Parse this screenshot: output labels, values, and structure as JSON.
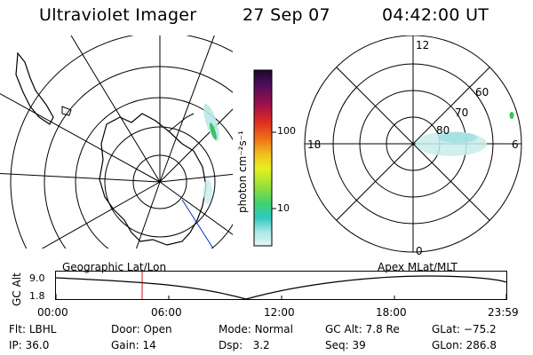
{
  "header": {
    "title": "Ultraviolet Imager",
    "date": "27 Sep 07",
    "time": "04:42:00 UT"
  },
  "geo_map": {
    "label": "Geographic Lat/Lon"
  },
  "colorbar": {
    "unit": "photon cm⁻²s⁻¹",
    "ticks": [
      "100",
      "10"
    ],
    "colors": [
      "#2a0a4a",
      "#5a0e5a",
      "#a0104a",
      "#e03020",
      "#f07818",
      "#f0c020",
      "#e8f020",
      "#a8e838",
      "#50d850",
      "#30c8c0",
      "#a8e8e8",
      "#e8f4f4"
    ]
  },
  "polar_map": {
    "label": "Apex MLat/MLT",
    "mlt_labels": {
      "top": "12",
      "left": "18",
      "right": "6",
      "bottom": "0"
    },
    "lat_labels": [
      "60",
      "70",
      "80"
    ]
  },
  "alt_plot": {
    "ylabel": "GC Alt",
    "yticks": [
      "9.0",
      "1.8"
    ],
    "xticks": [
      "00:00",
      "06:00",
      "12:00",
      "18:00",
      "23:59"
    ],
    "marker_color": "#d01010"
  },
  "status": {
    "row1": [
      {
        "key": "Flt:",
        "value": "LBHL"
      },
      {
        "key": "Door:",
        "value": "Open"
      },
      {
        "key": "Mode:",
        "value": "Normal"
      },
      {
        "key": "GC Alt:",
        "value": "7.8 Re"
      },
      {
        "key": "GLat:",
        "value": "−75.2"
      }
    ],
    "row2": [
      {
        "key": "IP:",
        "value": "36.0"
      },
      {
        "key": "Gain:",
        "value": "14"
      },
      {
        "key": "Dsp:",
        "value": "3.2"
      },
      {
        "key": "Seq:",
        "value": "39"
      },
      {
        "key": "GLon:",
        "value": "286.8"
      }
    ]
  }
}
